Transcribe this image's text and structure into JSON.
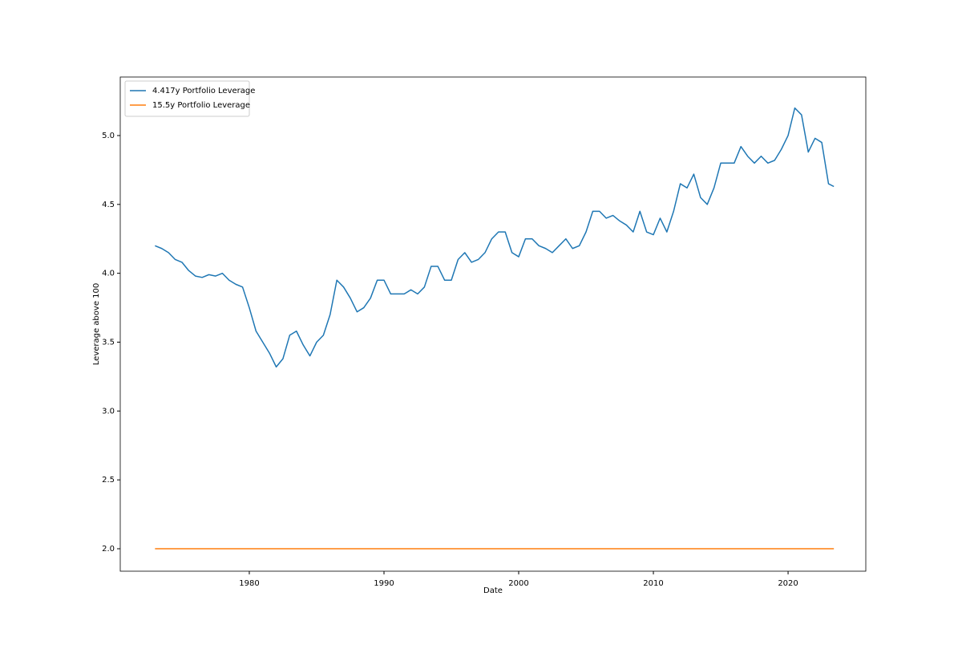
{
  "chart_data": {
    "type": "line",
    "xlabel": "Date",
    "ylabel": "Leverage above 100",
    "x": [
      1973.0,
      1973.5,
      1974.0,
      1974.5,
      1975.0,
      1975.5,
      1976.0,
      1976.5,
      1977.0,
      1977.5,
      1978.0,
      1978.5,
      1979.0,
      1979.5,
      1980.0,
      1980.5,
      1981.0,
      1981.5,
      1982.0,
      1982.5,
      1983.0,
      1983.5,
      1984.0,
      1984.5,
      1985.0,
      1985.5,
      1986.0,
      1986.5,
      1987.0,
      1987.5,
      1988.0,
      1988.5,
      1989.0,
      1989.5,
      1990.0,
      1990.5,
      1991.0,
      1991.5,
      1992.0,
      1992.5,
      1993.0,
      1993.5,
      1994.0,
      1994.5,
      1995.0,
      1995.5,
      1996.0,
      1996.5,
      1997.0,
      1997.5,
      1998.0,
      1998.5,
      1999.0,
      1999.5,
      2000.0,
      2000.5,
      2001.0,
      2001.5,
      2002.0,
      2002.5,
      2003.0,
      2003.5,
      2004.0,
      2004.5,
      2005.0,
      2005.5,
      2006.0,
      2006.5,
      2007.0,
      2007.5,
      2008.0,
      2008.5,
      2009.0,
      2009.5,
      2010.0,
      2010.5,
      2011.0,
      2011.5,
      2012.0,
      2012.5,
      2013.0,
      2013.5,
      2014.0,
      2014.5,
      2015.0,
      2015.5,
      2016.0,
      2016.5,
      2017.0,
      2017.5,
      2018.0,
      2018.5,
      2019.0,
      2019.5,
      2020.0,
      2020.5,
      2021.0,
      2021.5,
      2022.0,
      2022.5,
      2023.0,
      2023.4
    ],
    "series": [
      {
        "name": "4.417y Portfolio Leverage",
        "color": "#1f77b4",
        "values": [
          4.2,
          4.18,
          4.15,
          4.1,
          4.08,
          4.02,
          3.98,
          3.97,
          3.99,
          3.98,
          4.0,
          3.95,
          3.92,
          3.9,
          3.75,
          3.58,
          3.5,
          3.42,
          3.32,
          3.38,
          3.55,
          3.58,
          3.48,
          3.4,
          3.5,
          3.55,
          3.7,
          3.95,
          3.9,
          3.82,
          3.72,
          3.75,
          3.82,
          3.95,
          3.95,
          3.85,
          3.85,
          3.85,
          3.88,
          3.85,
          3.9,
          4.05,
          4.05,
          3.95,
          3.95,
          4.1,
          4.15,
          4.08,
          4.1,
          4.15,
          4.25,
          4.3,
          4.3,
          4.15,
          4.12,
          4.25,
          4.25,
          4.2,
          4.18,
          4.15,
          4.2,
          4.25,
          4.18,
          4.2,
          4.3,
          4.45,
          4.45,
          4.4,
          4.42,
          4.38,
          4.35,
          4.3,
          4.45,
          4.3,
          4.28,
          4.4,
          4.3,
          4.45,
          4.65,
          4.62,
          4.72,
          4.55,
          4.5,
          4.62,
          4.8,
          4.8,
          4.8,
          4.92,
          4.85,
          4.8,
          4.85,
          4.8,
          4.82,
          4.9,
          5.0,
          5.2,
          5.15,
          4.88,
          4.98,
          4.95,
          4.65,
          4.63
        ]
      },
      {
        "name": "15.5y Portfolio Leverage",
        "color": "#ff7f0e",
        "values": [
          2.0,
          2.0,
          2.0,
          2.0,
          2.0,
          2.0,
          2.0,
          2.0,
          2.0,
          2.0,
          2.0,
          2.0,
          2.0,
          2.0,
          2.0,
          2.0,
          2.0,
          2.0,
          2.0,
          2.0,
          2.0,
          2.0,
          2.0,
          2.0,
          2.0,
          2.0,
          2.0,
          2.0,
          2.0,
          2.0,
          2.0,
          2.0,
          2.0,
          2.0,
          2.0,
          2.0,
          2.0,
          2.0,
          2.0,
          2.0,
          2.0,
          2.0,
          2.0,
          2.0,
          2.0,
          2.0,
          2.0,
          2.0,
          2.0,
          2.0,
          2.0,
          2.0,
          2.0,
          2.0,
          2.0,
          2.0,
          2.0,
          2.0,
          2.0,
          2.0,
          2.0,
          2.0,
          2.0,
          2.0,
          2.0,
          2.0,
          2.0,
          2.0,
          2.0,
          2.0,
          2.0,
          2.0,
          2.0,
          2.0,
          2.0,
          2.0,
          2.0,
          2.0,
          2.0,
          2.0,
          2.0,
          2.0,
          2.0,
          2.0,
          2.0,
          2.0,
          2.0,
          2.0,
          2.0,
          2.0,
          2.0,
          2.0,
          2.0,
          2.0,
          2.0,
          2.0,
          2.0,
          2.0,
          2.0,
          2.0,
          2.0,
          2.0
        ]
      }
    ],
    "xlim": [
      1970.42,
      2025.77
    ],
    "xticks": [
      1980,
      1990,
      2000,
      2010,
      2020
    ],
    "ylim": [
      1.837,
      5.425
    ],
    "yticks": [
      {
        "value": 2,
        "label": "2.0"
      },
      2.5,
      {
        "value": 3,
        "label": "3.0"
      },
      3.5,
      {
        "value": 4,
        "label": "4.0"
      },
      4.5,
      {
        "value": 5,
        "label": "5.0"
      }
    ],
    "legend": "upper left"
  }
}
